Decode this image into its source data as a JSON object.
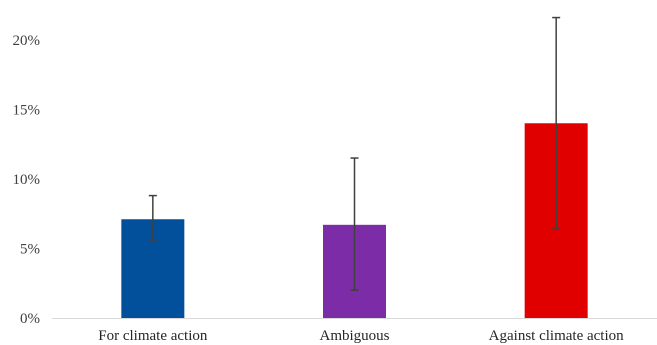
{
  "chart_data": {
    "type": "bar",
    "categories": [
      "For climate action",
      "Ambiguous",
      "Against climate action"
    ],
    "values": [
      7.1,
      6.7,
      14.0
    ],
    "error_low": [
      5.6,
      2.0,
      6.4
    ],
    "error_high": [
      8.8,
      11.5,
      21.6
    ],
    "colors": [
      "#02509C",
      "#7B2CA6",
      "#E00000"
    ],
    "yticks": [
      0,
      5,
      10,
      15,
      20
    ],
    "ytick_labels": [
      "0%",
      "5%",
      "10%",
      "15%",
      "20%"
    ],
    "ylim": [
      0,
      22
    ],
    "grid": false,
    "legend": "none",
    "error_bar_color": "#404040"
  }
}
